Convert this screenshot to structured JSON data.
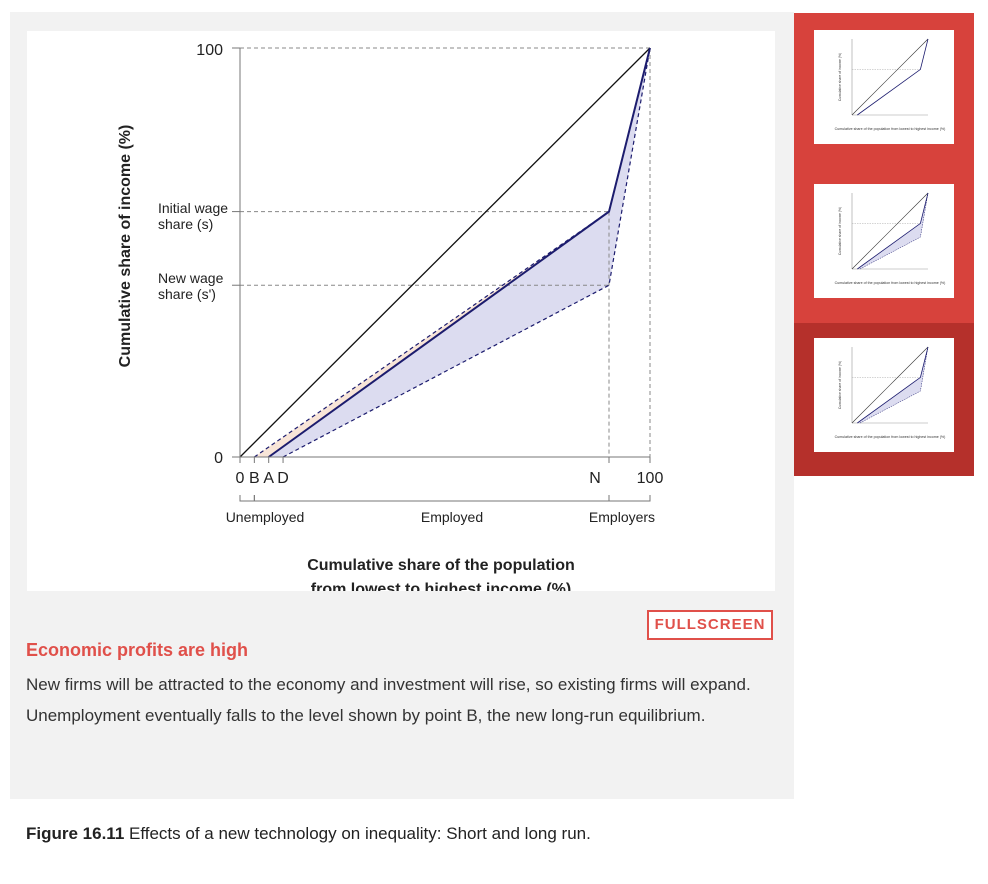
{
  "chart": {
    "y_top_label": "100",
    "y_zero_label": "0",
    "y_initial_label_1": "Initial wage",
    "y_initial_label_2": "share (s)",
    "y_new_label_1": "New wage",
    "y_new_label_2": "share (s')",
    "x_labels": [
      "0",
      "B",
      "A",
      "D",
      "N",
      "100"
    ],
    "group_unemployed": "Unemployed",
    "group_employed": "Employed",
    "group_employers": "Employers",
    "x_title_1": "Cumulative share of the population",
    "x_title_2": "from lowest to highest income (%)",
    "y_title": "Cumulative share of income (%)",
    "colors": {
      "shade_blue": "#dcdcf0",
      "shade_orange": "#f6dccb",
      "line_blue": "#1c1c6e",
      "line_black": "#111111",
      "guide_grey": "#888888"
    }
  },
  "chart_data": {
    "type": "line",
    "xlim": [
      0,
      100
    ],
    "ylim": [
      0,
      100
    ],
    "points": {
      "B": 3.5,
      "A": 7,
      "D": 10.5,
      "N": 90,
      "initial_wage_share": 60,
      "new_wage_share": 42
    },
    "series": [
      {
        "values_xy": [
          [
            0,
            0
          ],
          [
            100,
            100
          ]
        ]
      },
      {
        "values_xy": [
          [
            7,
            0
          ],
          [
            90,
            60
          ],
          [
            100,
            100
          ]
        ]
      },
      {
        "values_xy": [
          [
            3.5,
            0
          ],
          [
            90,
            60
          ],
          [
            100,
            100
          ]
        ]
      },
      {
        "values_xy": [
          [
            10.5,
            0
          ],
          [
            90,
            42
          ],
          [
            100,
            100
          ]
        ]
      }
    ]
  },
  "fullscreen_label": "FULLSCREEN",
  "step": {
    "title": "Economic profits are high",
    "text": "New firms will be attracted to the economy and investment will rise, so existing firms will expand. Unemployment eventually falls to the level shown by point B, the new long-run equilibrium."
  },
  "caption": {
    "label": "Figure 16.11",
    "text": " Effects of a new technology on inequality: Short and long run."
  },
  "thumbnails": [
    {
      "small_y_title": "Cumulative share of income (%)",
      "small_x_title": "Cumulative share of the population from lowest to highest income (%)"
    },
    {
      "small_y_title": "Cumulative share of income (%)",
      "small_x_title": "Cumulative share of the population from lowest to highest income (%)"
    },
    {
      "small_y_title": "Cumulative share of income (%)",
      "small_x_title": "Cumulative share of the population from lowest to highest income (%)"
    }
  ]
}
